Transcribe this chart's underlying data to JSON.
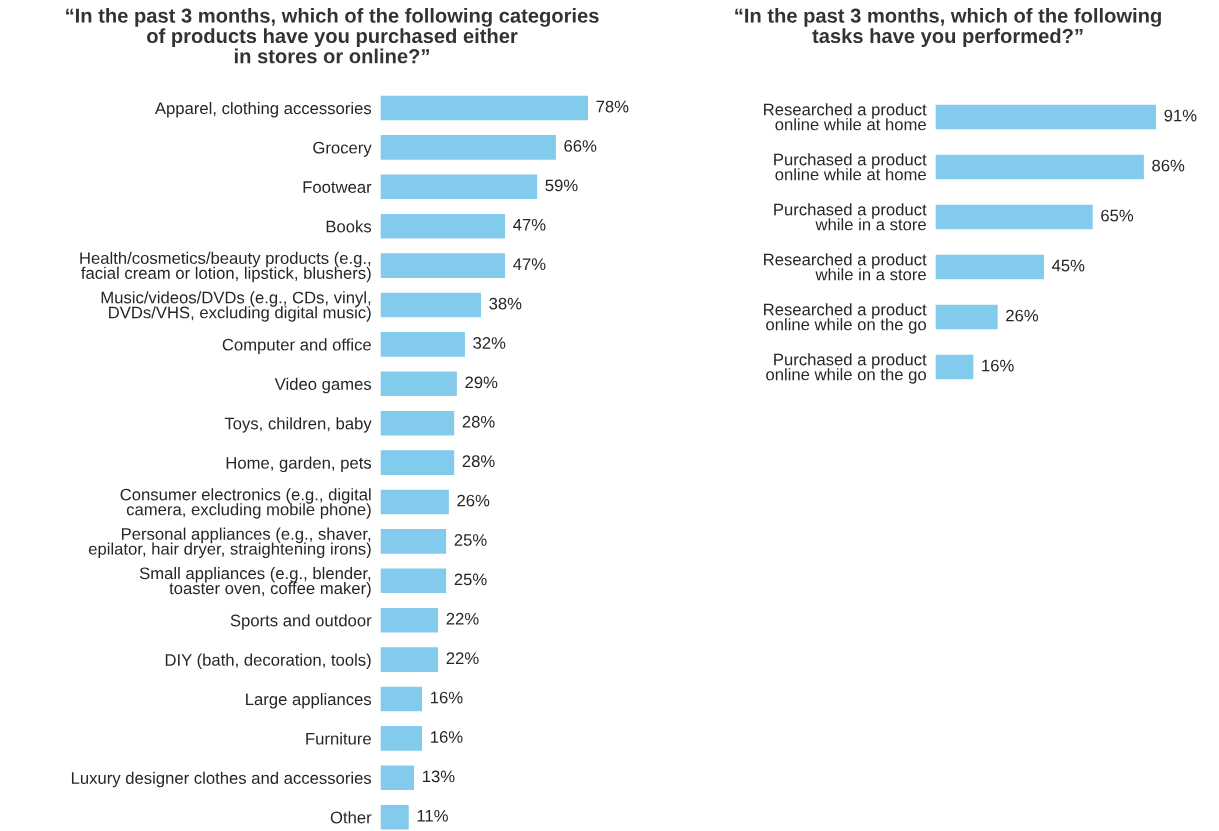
{
  "chart_data": [
    {
      "type": "bar",
      "orientation": "horizontal",
      "title": "“In the past 3 months, which of the following categories\nof products have you purchased either\nin stores or online?”",
      "categories": [
        "Apparel, clothing accessories",
        "Grocery",
        "Footwear",
        "Books",
        "Health/cosmetics/beauty products (e.g.,\nfacial cream or lotion, lipstick, blushers)",
        "Music/videos/DVDs (e.g., CDs, vinyl,\nDVDs/VHS, excluding digital music)",
        "Computer and office",
        "Video games",
        "Toys, children, baby",
        "Home, garden, pets",
        "Consumer electronics (e.g., digital\ncamera, excluding mobile phone)",
        "Personal appliances (e.g., shaver,\nepilator, hair dryer, straightening irons)",
        "Small appliances (e.g., blender,\ntoaster oven, coffee maker)",
        "Sports and outdoor",
        "DIY (bath, decoration, tools)",
        "Large appliances",
        "Furniture",
        "Luxury designer clothes and accessories",
        "Other"
      ],
      "values": [
        78,
        66,
        59,
        47,
        47,
        38,
        32,
        29,
        28,
        28,
        26,
        25,
        25,
        22,
        22,
        16,
        16,
        13,
        11
      ],
      "value_labels": [
        "78%",
        "66%",
        "59%",
        "47%",
        "47%",
        "38%",
        "32%",
        "29%",
        "28%",
        "28%",
        "26%",
        "25%",
        "25%",
        "22%",
        "22%",
        "16%",
        "16%",
        "13%",
        "11%"
      ],
      "color": "#82cbec",
      "tick_labels": "y"
    },
    {
      "type": "bar",
      "orientation": "horizontal",
      "title": "“In the past 3 months, which of the following\ntasks have you performed?”",
      "categories": [
        "Researched a product\nonline while at home",
        "Purchased a product\nonline while at home",
        "Purchased a product\nwhile in a store",
        "Researched a product\nwhile in a store",
        "Researched a product\nonline while on the go",
        "Purchased a product\nonline while on the go"
      ],
      "values": [
        91,
        86,
        65,
        45,
        26,
        16
      ],
      "value_labels": [
        "91%",
        "86%",
        "65%",
        "45%",
        "26%",
        "16%"
      ],
      "color": "#82cbec",
      "tick_labels": "y"
    }
  ]
}
